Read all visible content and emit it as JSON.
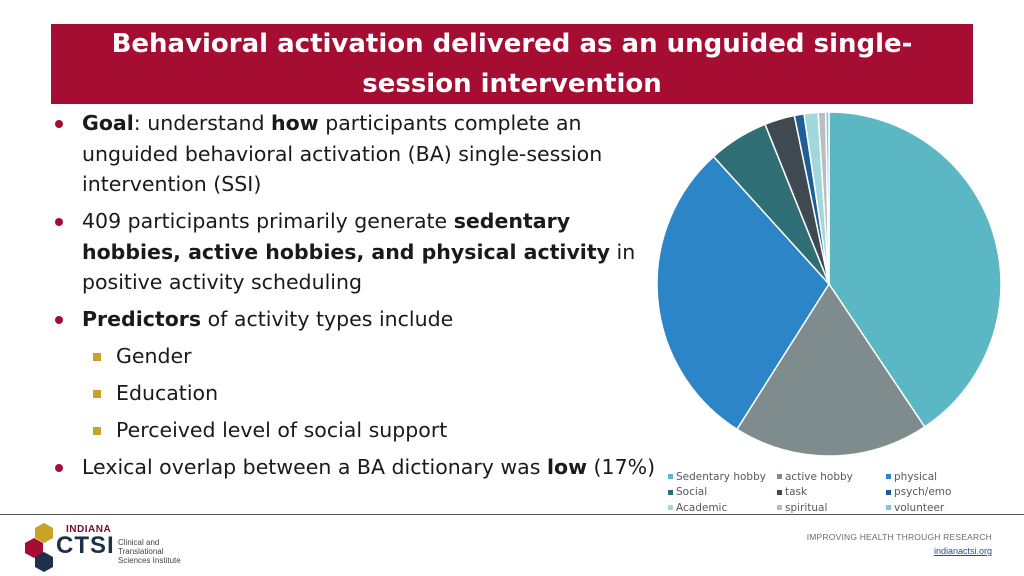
{
  "title": "Behavioral activation delivered as an unguided single-session intervention",
  "bullets": {
    "b1": {
      "strong": "Goal",
      "t1": ": understand ",
      "strong2": "how",
      "t2": " participants complete an unguided behavioral activation (BA) single-session intervention (SSI)"
    },
    "b2": {
      "t1": "409 participants primarily generate ",
      "strong": "sedentary hobbies, active hobbies, and physical activity",
      "t2": " in positive activity scheduling"
    },
    "b3": {
      "strong": "Predictors",
      "t1": " of activity types include"
    },
    "subs": [
      "Gender",
      "Education",
      "Perceived level of social support"
    ],
    "b4": {
      "t1": "Lexical overlap between a BA dictionary was ",
      "strong": "low",
      "t2": " (17%)"
    }
  },
  "footer": {
    "logo_top": "INDIANA",
    "logo_main": "CTSI",
    "logo_sub": "Clinical and Translational Sciences Institute",
    "tagline": "IMPROVING HEALTH THROUGH RESEARCH",
    "url": "indianactsi.org"
  },
  "chart_data": {
    "type": "pie",
    "title": "",
    "categories": [
      "Sedentary hobby",
      "active hobby",
      "physical",
      "Social",
      "task",
      "psych/emo",
      "Academic",
      "spiritual",
      "volunteer"
    ],
    "values": [
      40.2,
      18.2,
      29.0,
      5.6,
      2.8,
      0.9,
      1.3,
      0.7,
      0.3
    ],
    "colors": [
      "#5ab7c3",
      "#7f8c8d",
      "#2b85c6",
      "#2f6e75",
      "#3e4a4f",
      "#1f5f99",
      "#a3d7de",
      "#b9bec0",
      "#86c3d6"
    ],
    "legend_position": "bottom"
  }
}
